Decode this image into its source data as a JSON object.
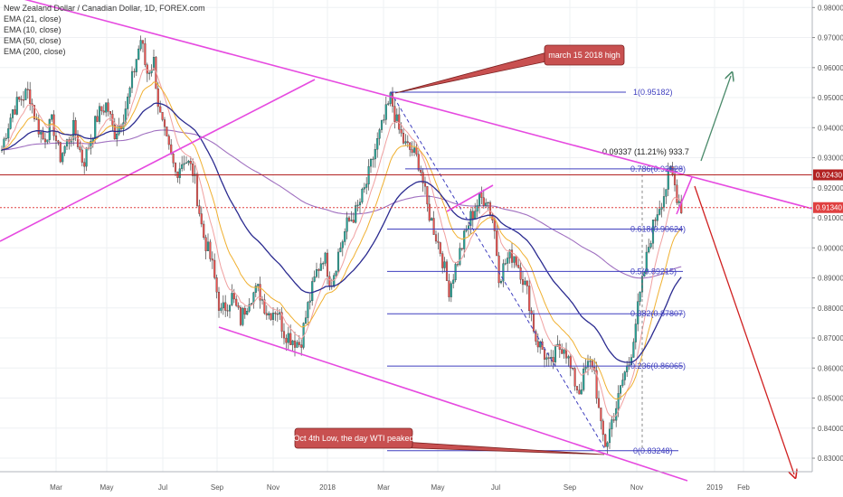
{
  "chart_data": {
    "type": "candlestick",
    "title": "New Zealand Dollar / Canadian Dollar, 1D, FOREX.com",
    "indicators": [
      "EMA (21, close)",
      "EMA (10, close)",
      "EMA (50, close)",
      "EMA (200, close)"
    ],
    "x_ticks": [
      "Mar",
      "May",
      "Jul",
      "Sep",
      "Nov",
      "2018",
      "Mar",
      "May",
      "Jul",
      "Sep",
      "Nov",
      "2019",
      "Feb"
    ],
    "y_ticks": [
      "0.98000",
      "0.97000",
      "0.96000",
      "0.95000",
      "0.94000",
      "0.93000",
      "0.92000",
      "0.91000",
      "0.90000",
      "0.89000",
      "0.88000",
      "0.87000",
      "0.86000",
      "0.85000",
      "0.84000",
      "0.83000"
    ],
    "ylim": [
      0.8255,
      0.9825
    ],
    "last_price": "0.92430",
    "last_price_color": "#b22222",
    "secondary_price": "0.91340",
    "secondary_price_color": "#e04040",
    "fib_levels": [
      {
        "ratio": "1",
        "price": 0.95182,
        "label": "1(0.95182)"
      },
      {
        "ratio": "0.786",
        "price": 0.92628,
        "label": "0.786(0.92628)"
      },
      {
        "ratio": "0.618",
        "price": 0.90624,
        "label": "0.618(0.90624)"
      },
      {
        "ratio": "0.5",
        "price": 0.89215,
        "label": "0.5(0.89215)"
      },
      {
        "ratio": "0.382",
        "price": 0.87807,
        "label": "0.382(0.87807)"
      },
      {
        "ratio": "0.236",
        "price": 0.86065,
        "label": "0.236(0.86065)"
      },
      {
        "ratio": "0",
        "price": 0.83248,
        "label": "0(0.83248)"
      }
    ],
    "measure_label": "0.09337 (11.21%) 933.7",
    "annotations": [
      "march 15 2018 high",
      "Oct 4th Low, the day WTI peaked"
    ],
    "colors": {
      "up_candle": "#26a69a",
      "down_candle": "#ef5350",
      "trendline": "#e64ae0",
      "fib": "#3f3fbf",
      "ema10": "#f0a0a0",
      "ema21": "#f0b030",
      "ema50": "#2b2b90",
      "ema200": "#a070c0",
      "callout": "#c85050",
      "arrow_up": "#4a8a6a",
      "arrow_down": "#d02020"
    }
  }
}
